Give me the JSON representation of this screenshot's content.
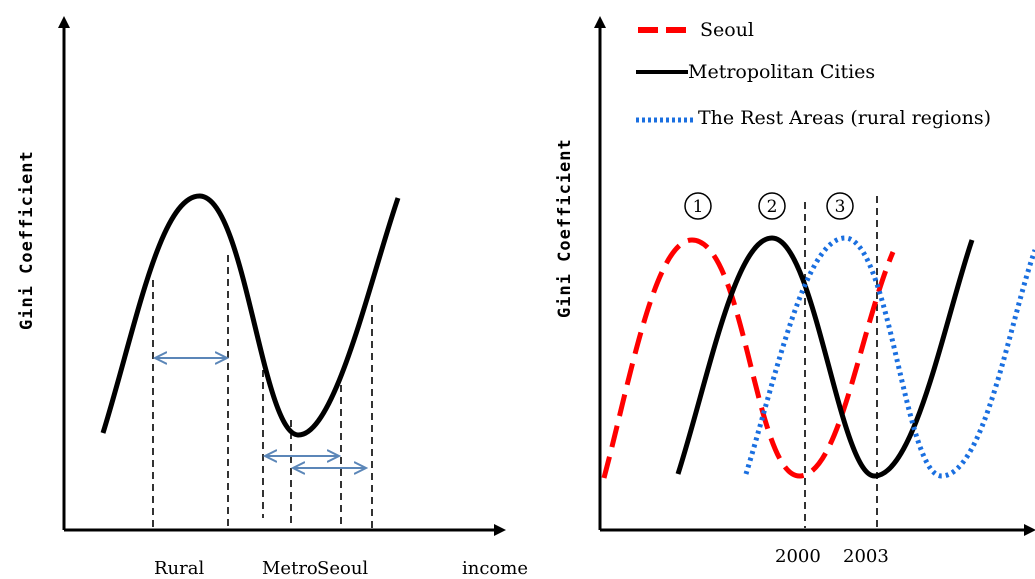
{
  "left_panel": {
    "y_axis_label": "Gini Coefficient",
    "x_axis_label": "income",
    "x_labels": [
      "Rural",
      "Metro",
      "Seoul"
    ]
  },
  "right_panel": {
    "y_axis_label": "Gini Coefficient",
    "legend": [
      {
        "label": "Seoul",
        "style": "dashed",
        "color": "#ff0000"
      },
      {
        "label": "Metropolitan Cities",
        "style": "solid",
        "color": "#000000"
      },
      {
        "label": "The Rest Areas (rural regions)",
        "style": "dotted",
        "color": "#1a6fe0"
      }
    ],
    "phase_markers": [
      "1",
      "2",
      "3"
    ],
    "year_labels": [
      "2000",
      "2003"
    ]
  },
  "colors": {
    "curve": "#000000",
    "seoul": "#ff0000",
    "rest": "#1a6fe0",
    "arrows": "#5b86b8"
  }
}
